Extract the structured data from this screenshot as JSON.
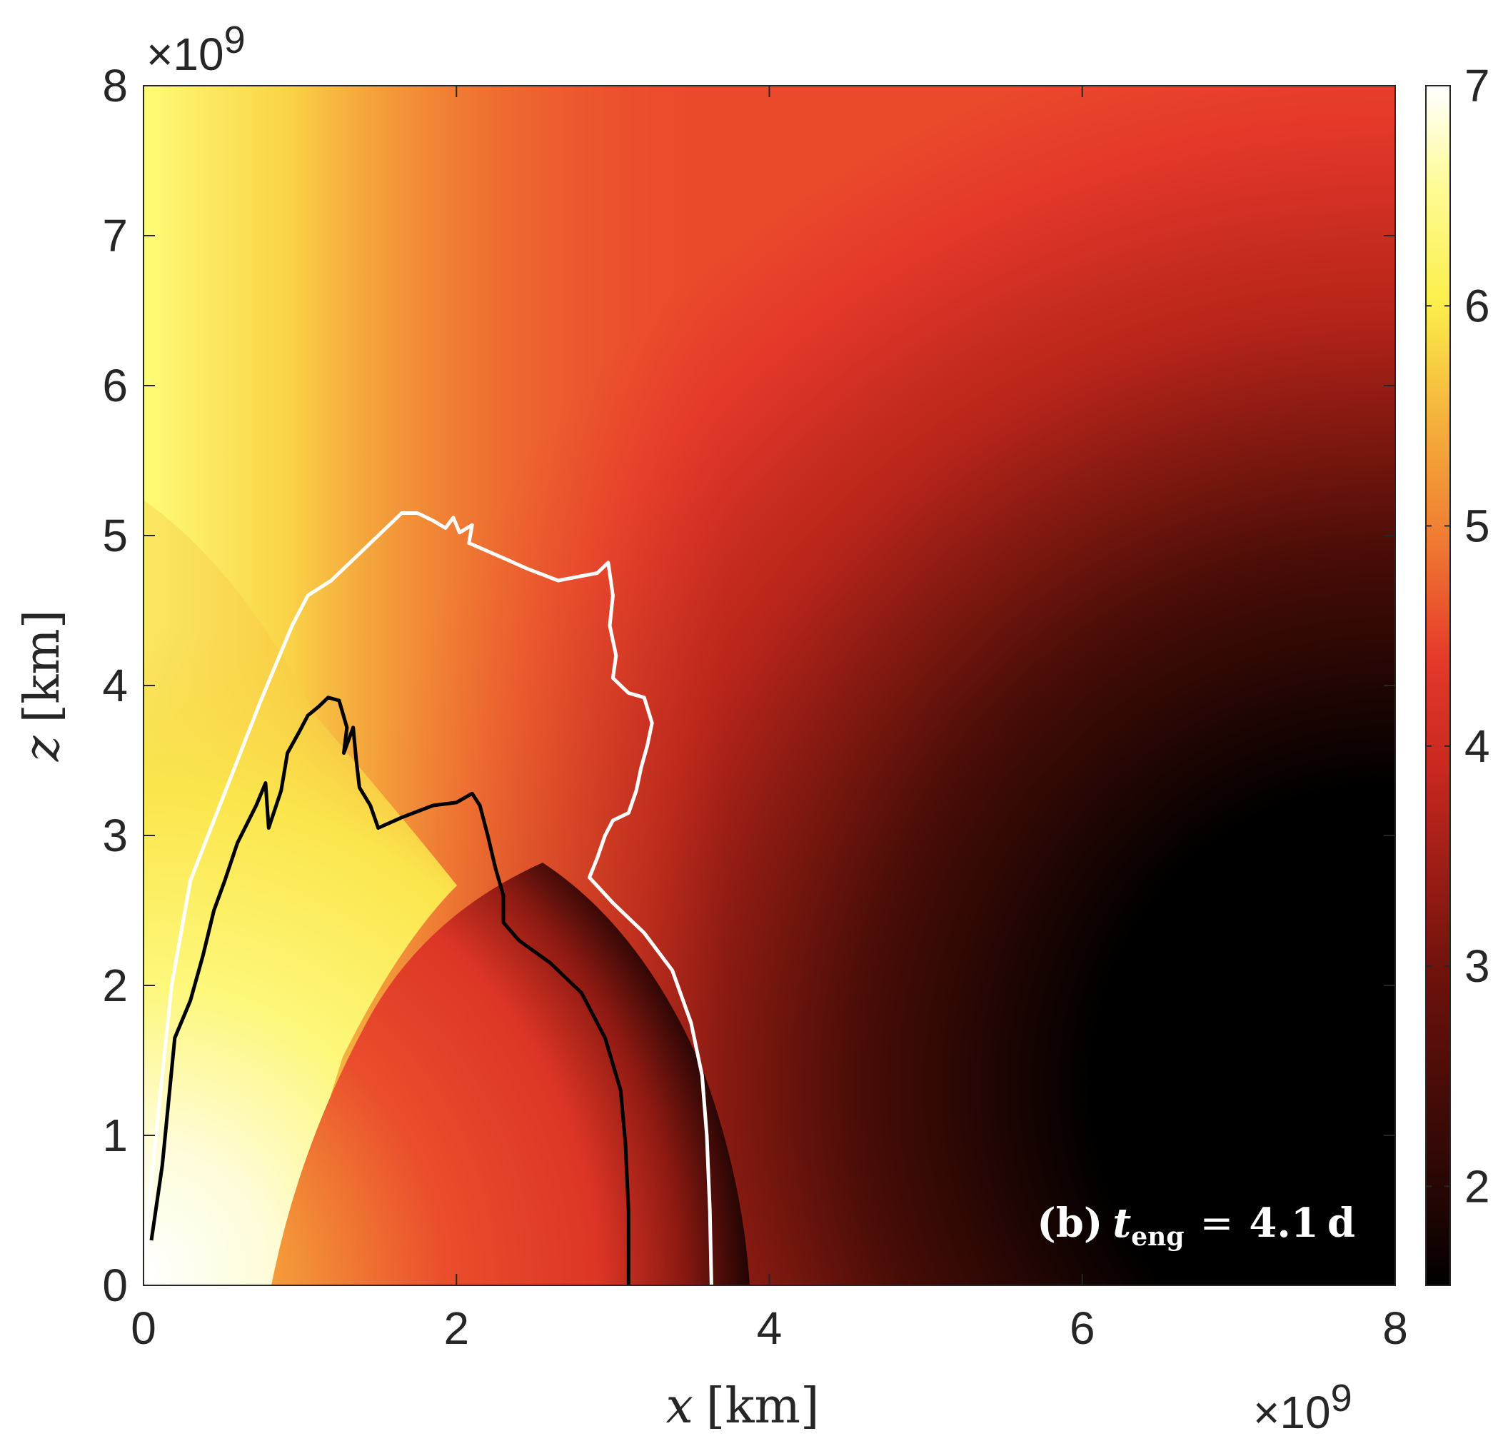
{
  "chart_data": {
    "type": "heatmap",
    "title": "",
    "panel_label": "(b)",
    "annotation": {
      "symbol": "t",
      "subscript": "eng",
      "equals": "=",
      "value": "4.1",
      "unit": "d"
    },
    "x_axis": {
      "variable": "x",
      "unit": "[km]",
      "range": [
        0,
        8
      ],
      "ticks": [
        "0",
        "2",
        "4",
        "6",
        "8"
      ],
      "multiplier_base": "×10",
      "multiplier_exp": "9"
    },
    "z_axis": {
      "variable": "z",
      "unit": "[km]",
      "range": [
        0,
        8
      ],
      "ticks": [
        "0",
        "1",
        "2",
        "3",
        "4",
        "5",
        "6",
        "7",
        "8"
      ],
      "multiplier_base": "×10",
      "multiplier_exp": "9"
    },
    "colorbar": {
      "range": [
        1.55,
        7.0
      ],
      "ticks": [
        "2",
        "3",
        "4",
        "5",
        "6",
        "7"
      ],
      "colormap": "hot",
      "colors": [
        "#000000",
        "#5a0a08",
        "#a81e15",
        "#e5322a",
        "#f07a32",
        "#f5c23f",
        "#fbf24a",
        "#ffffff"
      ]
    },
    "contours": [
      {
        "color": "#ffffff",
        "points": [
          [
            0.0,
            0.2
          ],
          [
            0.1,
            1.2
          ],
          [
            0.18,
            2.0
          ],
          [
            0.3,
            2.7
          ],
          [
            0.45,
            3.1
          ],
          [
            0.6,
            3.5
          ],
          [
            0.75,
            3.9
          ],
          [
            0.95,
            4.4
          ],
          [
            1.05,
            4.6
          ],
          [
            1.2,
            4.7
          ],
          [
            1.4,
            4.9
          ],
          [
            1.5,
            5.0
          ],
          [
            1.65,
            5.15
          ],
          [
            1.75,
            5.15
          ],
          [
            1.85,
            5.1
          ],
          [
            1.93,
            5.05
          ],
          [
            1.98,
            5.12
          ],
          [
            2.02,
            5.02
          ],
          [
            2.1,
            5.07
          ],
          [
            2.08,
            4.95
          ],
          [
            2.3,
            4.85
          ],
          [
            2.45,
            4.78
          ],
          [
            2.65,
            4.7
          ],
          [
            2.75,
            4.72
          ],
          [
            2.9,
            4.75
          ],
          [
            2.97,
            4.82
          ],
          [
            3.0,
            4.6
          ],
          [
            2.98,
            4.4
          ],
          [
            3.02,
            4.2
          ],
          [
            3.0,
            4.05
          ],
          [
            3.1,
            3.95
          ],
          [
            3.2,
            3.92
          ],
          [
            3.25,
            3.75
          ],
          [
            3.22,
            3.6
          ],
          [
            3.18,
            3.45
          ],
          [
            3.15,
            3.3
          ],
          [
            3.1,
            3.15
          ],
          [
            3.0,
            3.1
          ],
          [
            2.95,
            3.0
          ],
          [
            2.9,
            2.85
          ],
          [
            2.85,
            2.72
          ],
          [
            3.0,
            2.55
          ],
          [
            3.2,
            2.35
          ],
          [
            3.38,
            2.1
          ],
          [
            3.5,
            1.75
          ],
          [
            3.57,
            1.4
          ],
          [
            3.6,
            1.0
          ],
          [
            3.62,
            0.5
          ],
          [
            3.63,
            0.0
          ]
        ]
      },
      {
        "color": "#000000",
        "points": [
          [
            0.05,
            0.3
          ],
          [
            0.12,
            0.8
          ],
          [
            0.2,
            1.65
          ],
          [
            0.3,
            1.9
          ],
          [
            0.38,
            2.2
          ],
          [
            0.45,
            2.5
          ],
          [
            0.52,
            2.7
          ],
          [
            0.6,
            2.95
          ],
          [
            0.72,
            3.2
          ],
          [
            0.78,
            3.35
          ],
          [
            0.8,
            3.05
          ],
          [
            0.88,
            3.3
          ],
          [
            0.92,
            3.55
          ],
          [
            1.0,
            3.7
          ],
          [
            1.05,
            3.8
          ],
          [
            1.12,
            3.86
          ],
          [
            1.18,
            3.92
          ],
          [
            1.25,
            3.9
          ],
          [
            1.3,
            3.72
          ],
          [
            1.28,
            3.55
          ],
          [
            1.34,
            3.72
          ],
          [
            1.36,
            3.5
          ],
          [
            1.38,
            3.32
          ],
          [
            1.45,
            3.2
          ],
          [
            1.5,
            3.05
          ],
          [
            1.65,
            3.12
          ],
          [
            1.85,
            3.2
          ],
          [
            2.0,
            3.22
          ],
          [
            2.1,
            3.28
          ],
          [
            2.15,
            3.2
          ],
          [
            2.2,
            3.0
          ],
          [
            2.25,
            2.78
          ],
          [
            2.3,
            2.6
          ],
          [
            2.3,
            2.42
          ],
          [
            2.4,
            2.3
          ],
          [
            2.6,
            2.15
          ],
          [
            2.8,
            1.95
          ],
          [
            2.95,
            1.65
          ],
          [
            3.05,
            1.3
          ],
          [
            3.08,
            0.95
          ],
          [
            3.1,
            0.5
          ],
          [
            3.1,
            0.0
          ]
        ]
      }
    ]
  }
}
